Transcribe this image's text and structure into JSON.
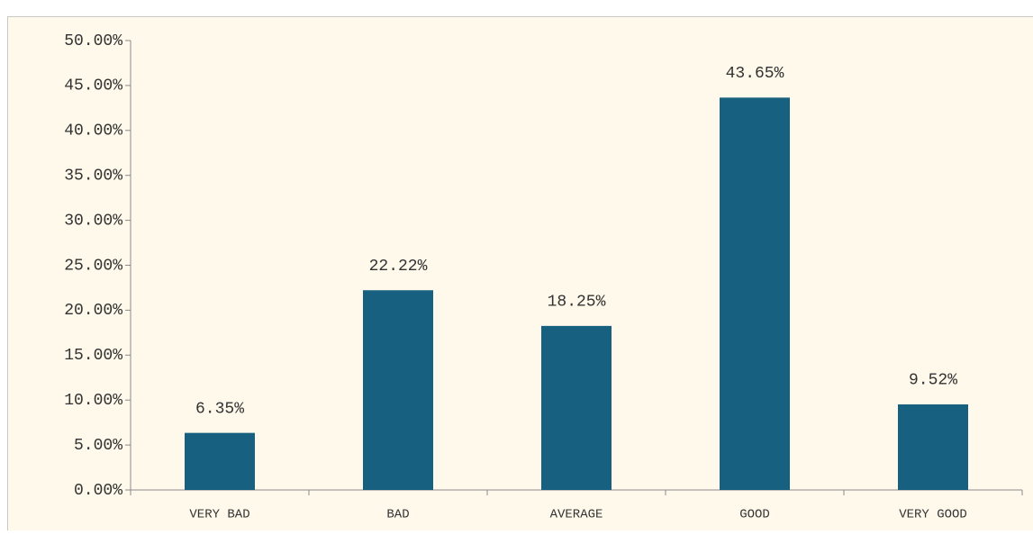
{
  "chart_data": {
    "type": "bar",
    "categories": [
      "VERY BAD",
      "BAD",
      "AVERAGE",
      "GOOD",
      "VERY GOOD"
    ],
    "values": [
      6.35,
      22.22,
      18.25,
      43.65,
      9.52
    ],
    "value_labels": [
      "6.35%",
      "22.22%",
      "18.25%",
      "43.65%",
      "9.52%"
    ],
    "color": "#17607f",
    "ylim": [
      0,
      50
    ],
    "yticks": [
      {
        "value": 0,
        "label": "0.00%"
      },
      {
        "value": 5,
        "label": "5.00%"
      },
      {
        "value": 10,
        "label": "10.00%"
      },
      {
        "value": 15,
        "label": "15.00%"
      },
      {
        "value": 20,
        "label": "20.00%"
      },
      {
        "value": 25,
        "label": "25.00%"
      },
      {
        "value": 30,
        "label": "30.00%"
      },
      {
        "value": 35,
        "label": "35.00%"
      },
      {
        "value": 40,
        "label": "40.00%"
      },
      {
        "value": 45,
        "label": "45.00%"
      },
      {
        "value": 50,
        "label": "50.00%"
      }
    ],
    "grid": false
  }
}
